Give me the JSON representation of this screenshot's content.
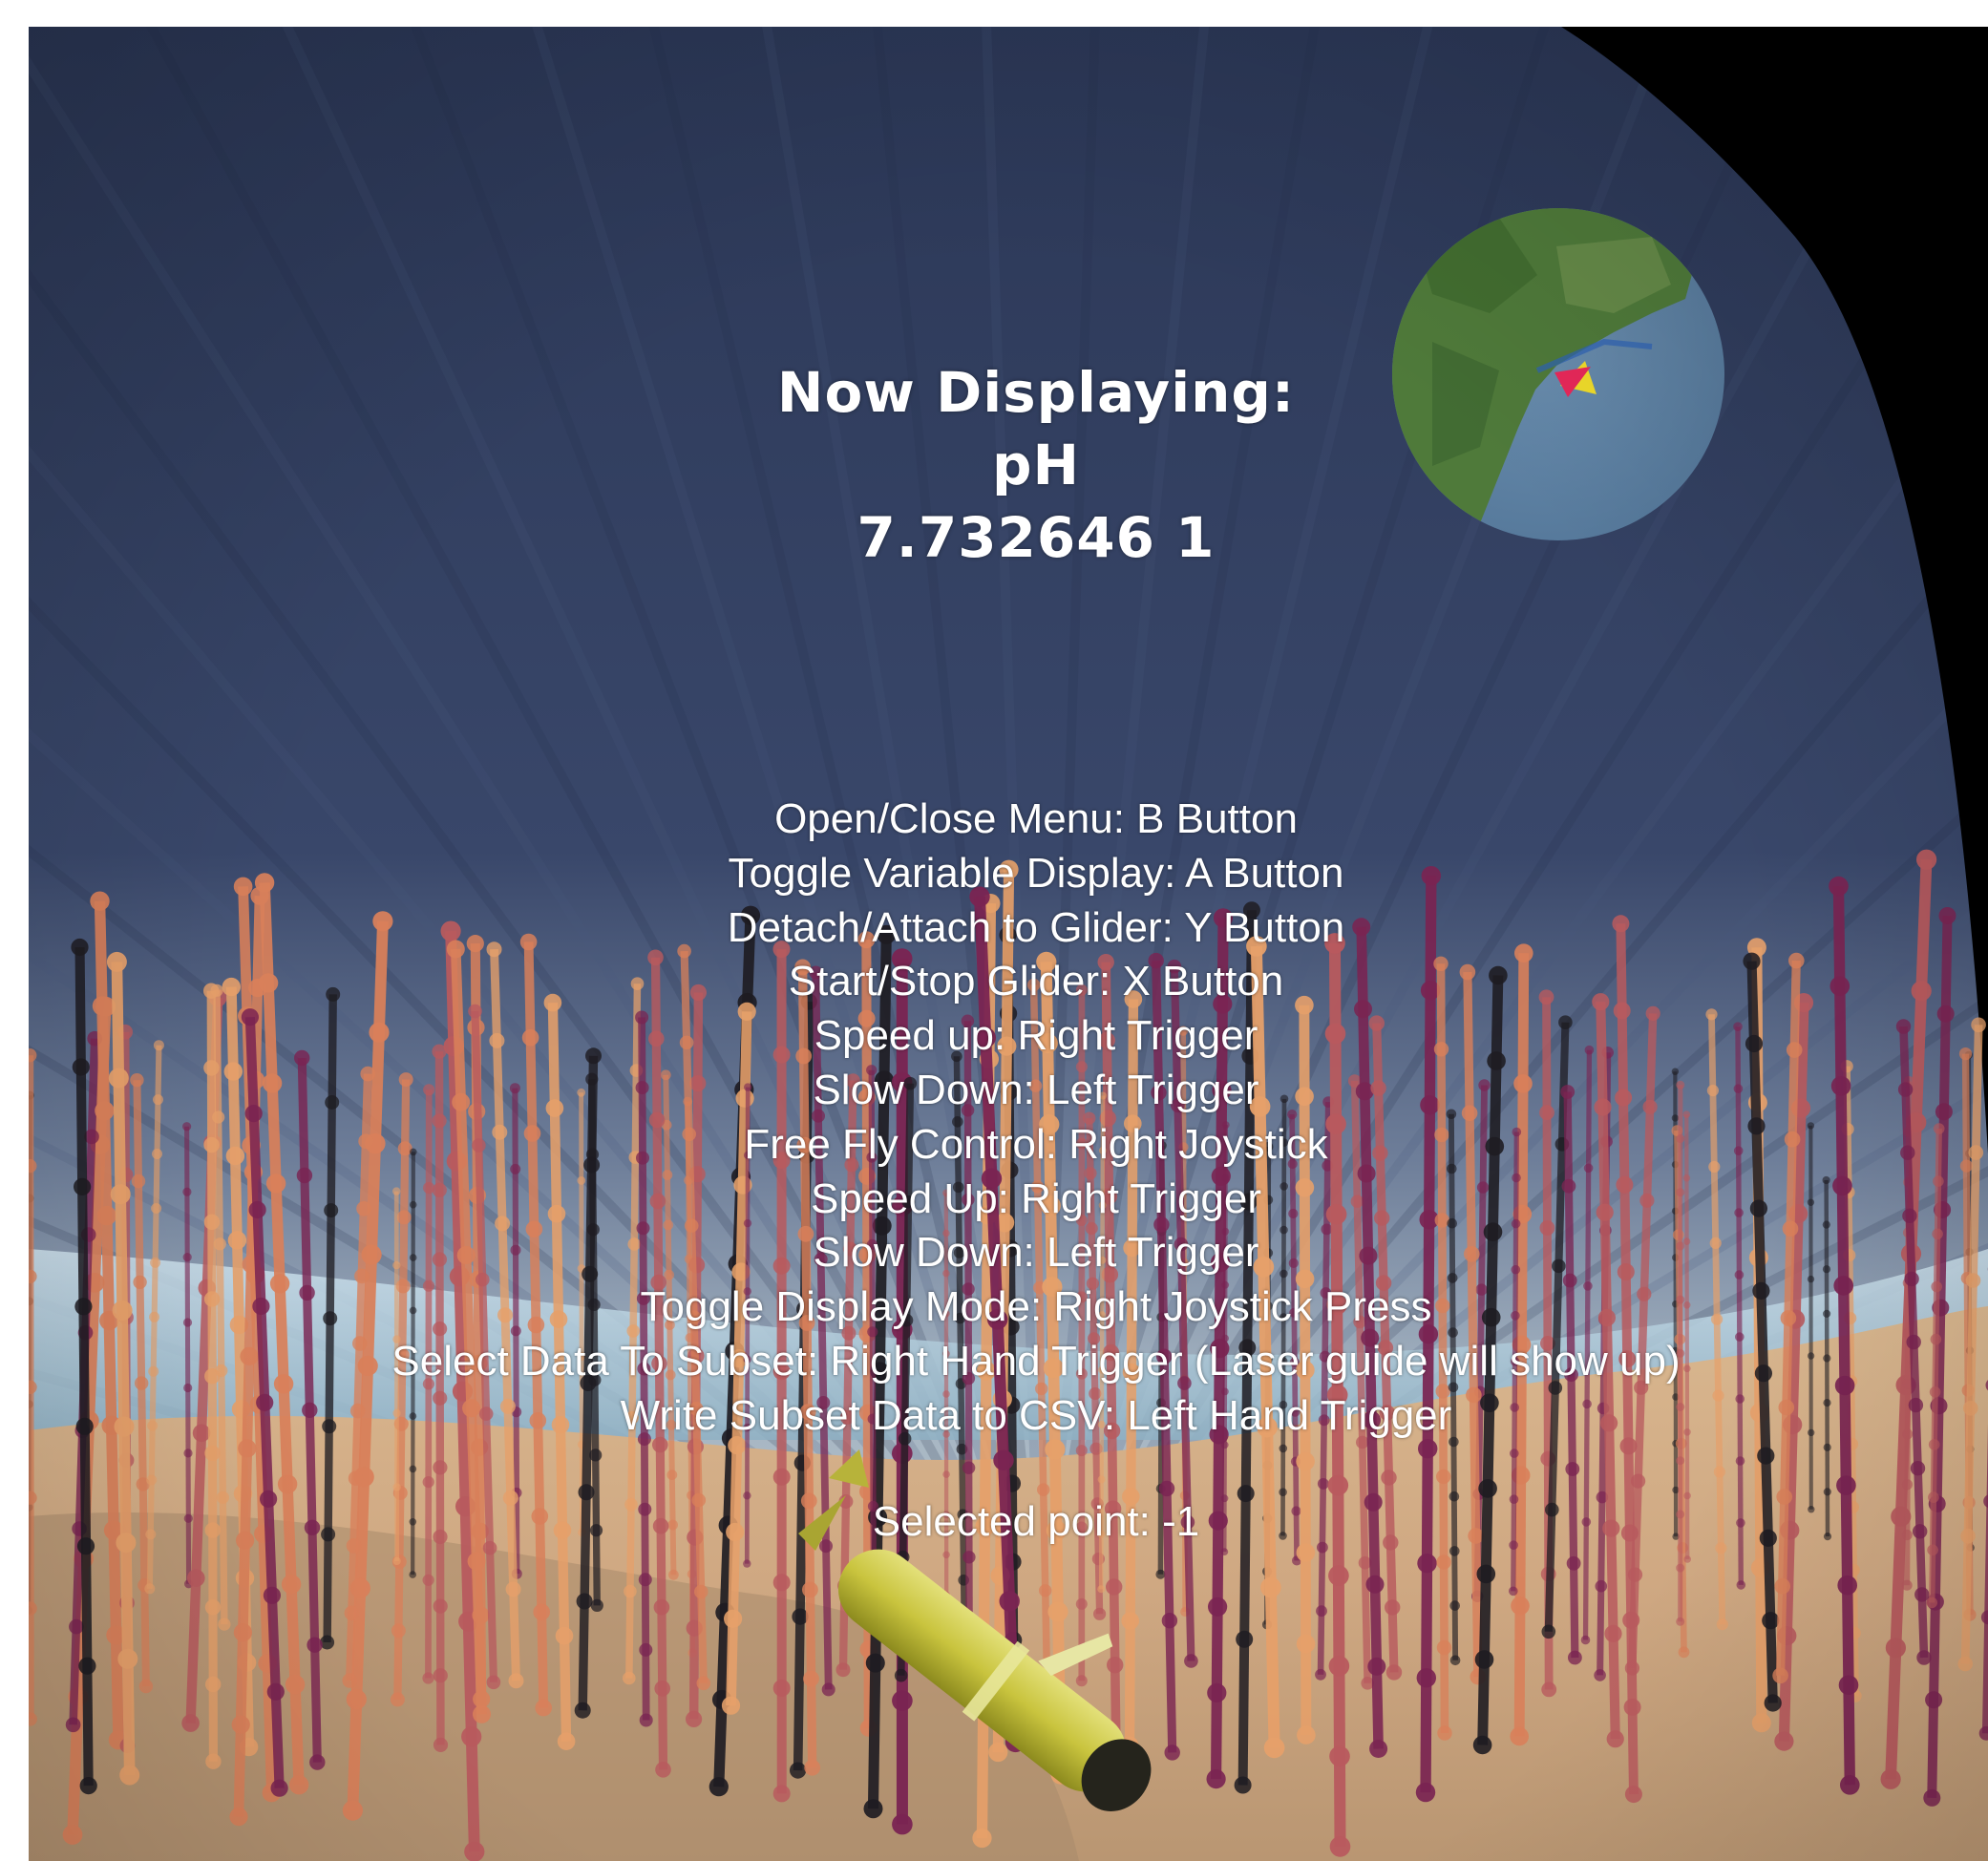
{
  "display": {
    "heading": "Now Displaying:",
    "variable": "pH",
    "value": "7.732646 1"
  },
  "instructions": [
    "Open/Close Menu: B Button",
    "Toggle Variable Display: A Button",
    "Detach/Attach to Glider: Y Button",
    "Start/Stop Glider: X Button",
    "Speed up: Right Trigger",
    "Slow Down: Left Trigger",
    "Free Fly Control: Right Joystick",
    "Speed Up: Right Trigger",
    "Slow Down: Left Trigger",
    "Toggle Display Mode: Right Joystick Press",
    "Select Data To Subset: Right Hand Trigger (Laser guide will show up)",
    "Write Subset Data to CSV: Left Hand Trigger"
  ],
  "selection": {
    "text": "Selected point: -1"
  },
  "minimap": {
    "marker_icon": "location-arrow-icon",
    "marker_colors": [
      "#f0dc2a",
      "#e8285a"
    ]
  },
  "colors": {
    "sky": "#2e3a5a",
    "sand": "#d7b48f",
    "profile_colors": [
      "#7a2452",
      "#b85a5e",
      "#d9805a",
      "#1e1c22",
      "#e6a06a"
    ]
  }
}
